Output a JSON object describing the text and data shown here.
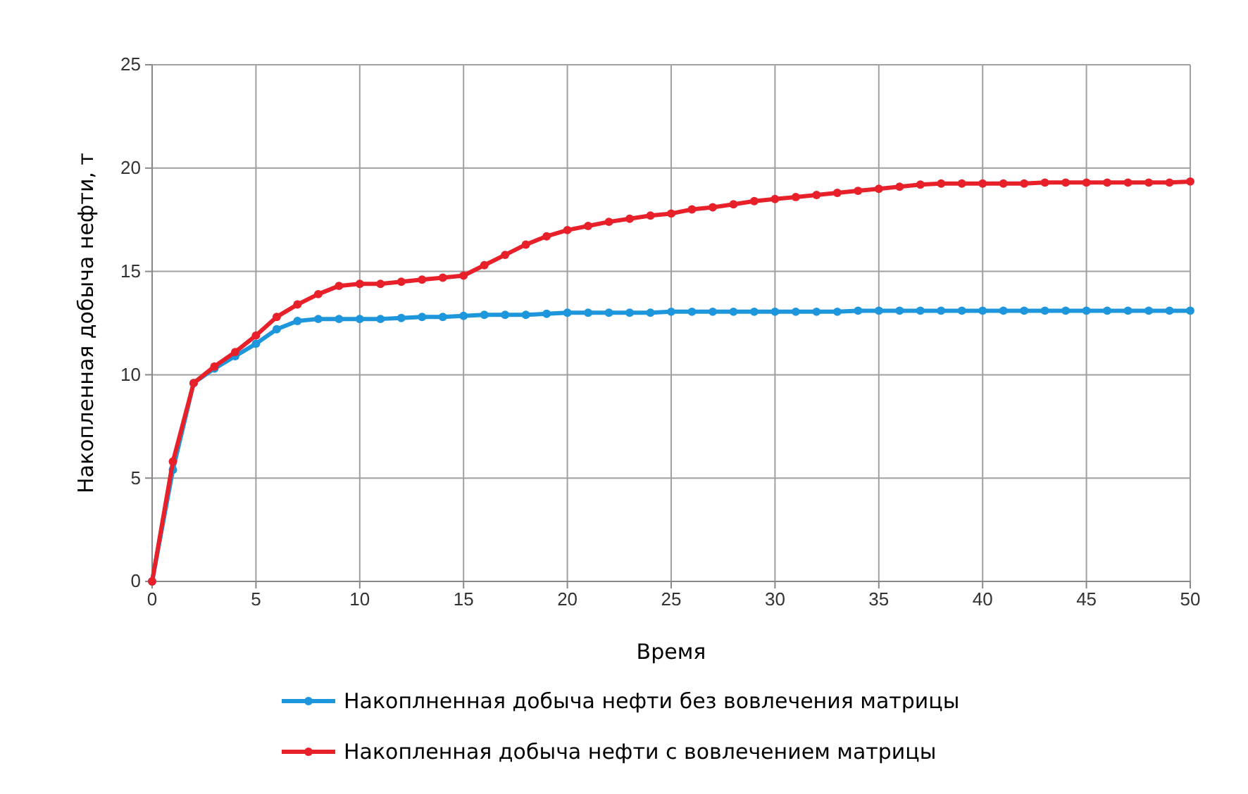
{
  "chart_data": {
    "type": "line",
    "xlabel": "Время",
    "ylabel": "Накопленная добыча нефти, т",
    "x": [
      0,
      1,
      2,
      3,
      4,
      5,
      6,
      7,
      8,
      9,
      10,
      11,
      12,
      13,
      14,
      15,
      16,
      17,
      18,
      19,
      20,
      21,
      22,
      23,
      24,
      25,
      26,
      27,
      28,
      29,
      30,
      31,
      32,
      33,
      34,
      35,
      36,
      37,
      38,
      39,
      40,
      41,
      42,
      43,
      44,
      45,
      46,
      47,
      48,
      49,
      50
    ],
    "series": [
      {
        "name": "Накоплненная добыча нефти без вовлечения матрицы",
        "color": "#1e96dc",
        "values": [
          0,
          5.4,
          9.6,
          10.3,
          10.9,
          11.5,
          12.2,
          12.6,
          12.7,
          12.7,
          12.7,
          12.7,
          12.75,
          12.8,
          12.8,
          12.85,
          12.9,
          12.9,
          12.9,
          12.95,
          13,
          13,
          13,
          13,
          13,
          13.05,
          13.05,
          13.05,
          13.05,
          13.05,
          13.05,
          13.05,
          13.05,
          13.05,
          13.1,
          13.1,
          13.1,
          13.1,
          13.1,
          13.1,
          13.1,
          13.1,
          13.1,
          13.1,
          13.1,
          13.1,
          13.1,
          13.1,
          13.1,
          13.1,
          13.1
        ]
      },
      {
        "name": "Накопленная добыча нефти с вовлечением матрицы",
        "color": "#e8202a",
        "values": [
          0,
          5.8,
          9.6,
          10.4,
          11.1,
          11.9,
          12.8,
          13.4,
          13.9,
          14.3,
          14.4,
          14.4,
          14.5,
          14.6,
          14.7,
          14.8,
          15.3,
          15.8,
          16.3,
          16.7,
          17,
          17.2,
          17.4,
          17.55,
          17.7,
          17.8,
          18,
          18.1,
          18.25,
          18.4,
          18.5,
          18.6,
          18.7,
          18.8,
          18.9,
          19,
          19.1,
          19.2,
          19.25,
          19.25,
          19.25,
          19.25,
          19.25,
          19.3,
          19.3,
          19.3,
          19.3,
          19.3,
          19.3,
          19.3,
          19.35
        ]
      }
    ],
    "xlim": [
      0,
      50
    ],
    "xticks": [
      0,
      5,
      10,
      15,
      20,
      25,
      30,
      35,
      40,
      45,
      50
    ],
    "ylim": [
      0,
      25
    ],
    "yticks": [
      0,
      5,
      10,
      15,
      20,
      25
    ],
    "grid": true,
    "legend": "bottom",
    "marker": "circle",
    "line_style": "solid"
  }
}
